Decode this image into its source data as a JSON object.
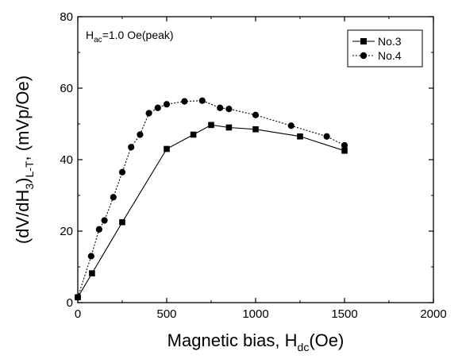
{
  "chart_data": {
    "type": "line",
    "xlabel_main": "Magnetic bias, H",
    "xlabel_sub": "dc",
    "xlabel_tail": "(Oe)",
    "ylabel_main": "(dV/dH",
    "ylabel_sub1": "3",
    "ylabel_mid": ")",
    "ylabel_sub2": "L-T",
    "ylabel_tail": ", (mVp/Oe)",
    "annotation_main": "H",
    "annotation_sub": "ac",
    "annotation_tail": "=1.0 Oe(peak)",
    "xlim": [
      0,
      2000
    ],
    "ylim": [
      0,
      80
    ],
    "x_ticks": [
      0,
      500,
      1000,
      1500,
      2000
    ],
    "y_ticks": [
      0,
      20,
      40,
      60,
      80
    ],
    "x_tick_labels": [
      "0",
      "500",
      "1000",
      "1500",
      "2000"
    ],
    "y_tick_labels": [
      "0",
      "20",
      "40",
      "60",
      "80"
    ],
    "grid": false,
    "legend_position": "top-right",
    "series": [
      {
        "name": "No.3",
        "marker": "square",
        "line_style": "solid",
        "color": "#000000",
        "x": [
          0,
          80,
          250,
          500,
          650,
          750,
          850,
          1000,
          1250,
          1500
        ],
        "y": [
          1.5,
          8.2,
          22.5,
          43.0,
          47.0,
          49.7,
          49.0,
          48.5,
          46.5,
          42.5
        ]
      },
      {
        "name": "No.4",
        "marker": "circle",
        "line_style": "dotted",
        "color": "#000000",
        "x": [
          0,
          75,
          120,
          150,
          200,
          250,
          300,
          350,
          400,
          450,
          500,
          600,
          700,
          800,
          850,
          1000,
          1200,
          1400,
          1500
        ],
        "y": [
          1.5,
          13.0,
          20.5,
          23.0,
          29.5,
          36.5,
          43.5,
          47.0,
          53.0,
          54.5,
          55.5,
          56.3,
          56.5,
          54.5,
          54.2,
          52.5,
          49.5,
          46.5,
          44.0
        ]
      }
    ]
  }
}
